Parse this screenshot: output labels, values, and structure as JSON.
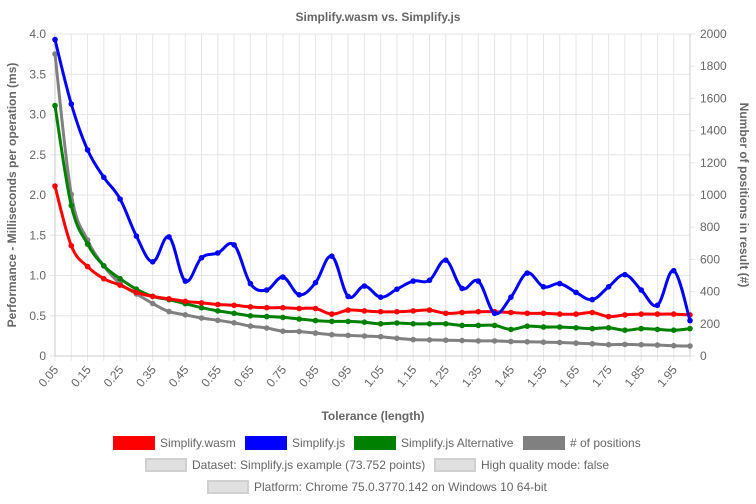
{
  "chart_data": {
    "type": "line",
    "title": "Simplify.wasm vs. Simplify.js",
    "xlabel": "Tolerance (length)",
    "ylabel_left": "Performance - Milliseconds per operation (ms)",
    "ylabel_right": "Number of positions in result (#)",
    "ylim_left": [
      0,
      4.0
    ],
    "ylim_right": [
      0,
      2000
    ],
    "yticks_left": [
      "0",
      "0.5",
      "1.0",
      "1.5",
      "2.0",
      "2.5",
      "3.0",
      "3.5",
      "4.0"
    ],
    "yticks_right": [
      "0",
      "200",
      "400",
      "600",
      "800",
      "1000",
      "1200",
      "1400",
      "1600",
      "1800",
      "2000"
    ],
    "x": [
      0.05,
      0.1,
      0.15,
      0.2,
      0.25,
      0.3,
      0.35,
      0.4,
      0.45,
      0.5,
      0.55,
      0.6,
      0.65,
      0.7,
      0.75,
      0.8,
      0.85,
      0.9,
      0.95,
      1.0,
      1.05,
      1.1,
      1.15,
      1.2,
      1.25,
      1.3,
      1.35,
      1.4,
      1.45,
      1.5,
      1.55,
      1.6,
      1.65,
      1.7,
      1.75,
      1.8,
      1.85,
      1.9,
      1.95,
      2.0
    ],
    "xticks": [
      "0.05",
      "0.15",
      "0.25",
      "0.35",
      "0.45",
      "0.55",
      "0.65",
      "0.75",
      "0.85",
      "0.95",
      "1.05",
      "1.15",
      "1.25",
      "1.35",
      "1.45",
      "1.55",
      "1.65",
      "1.75",
      "1.85",
      "1.95"
    ],
    "grid": true,
    "legend": "bottom",
    "series": [
      {
        "name": "Simplify.wasm",
        "color": "#ff0000",
        "axis": "left",
        "values": [
          2.11,
          1.37,
          1.11,
          0.96,
          0.88,
          0.79,
          0.74,
          0.71,
          0.68,
          0.66,
          0.64,
          0.63,
          0.61,
          0.6,
          0.6,
          0.59,
          0.59,
          0.52,
          0.57,
          0.56,
          0.55,
          0.55,
          0.56,
          0.57,
          0.53,
          0.54,
          0.55,
          0.55,
          0.54,
          0.53,
          0.53,
          0.52,
          0.52,
          0.54,
          0.49,
          0.51,
          0.52,
          0.52,
          0.52,
          0.51
        ]
      },
      {
        "name": "Simplify.js",
        "color": "#0000ff",
        "axis": "left",
        "values": [
          3.93,
          3.13,
          2.56,
          2.22,
          1.95,
          1.49,
          1.17,
          1.48,
          0.93,
          1.22,
          1.28,
          1.38,
          0.9,
          0.82,
          0.98,
          0.76,
          0.91,
          1.24,
          0.74,
          0.87,
          0.73,
          0.83,
          0.93,
          0.94,
          1.19,
          0.84,
          0.93,
          0.53,
          0.73,
          1.03,
          0.86,
          0.9,
          0.79,
          0.7,
          0.86,
          1.01,
          0.82,
          0.63,
          1.06,
          0.44
        ]
      },
      {
        "name": "Simplify.js Alternative",
        "color": "#008000",
        "axis": "left",
        "values": [
          3.11,
          1.87,
          1.39,
          1.12,
          0.96,
          0.83,
          0.74,
          0.7,
          0.65,
          0.6,
          0.56,
          0.53,
          0.5,
          0.49,
          0.48,
          0.46,
          0.44,
          0.43,
          0.43,
          0.42,
          0.4,
          0.41,
          0.4,
          0.4,
          0.4,
          0.38,
          0.38,
          0.38,
          0.33,
          0.37,
          0.36,
          0.36,
          0.35,
          0.34,
          0.35,
          0.32,
          0.34,
          0.33,
          0.32,
          0.34
        ]
      },
      {
        "name": "# of positions",
        "color": "#808080",
        "axis": "right",
        "values": [
          1876,
          1004,
          720,
          560,
          450,
          386,
          326,
          276,
          256,
          236,
          222,
          206,
          186,
          174,
          154,
          152,
          142,
          132,
          128,
          124,
          120,
          110,
          102,
          100,
          98,
          96,
          94,
          94,
          90,
          88,
          86,
          84,
          80,
          76,
          70,
          72,
          70,
          68,
          64,
          62
        ]
      }
    ]
  },
  "legend_extra": [
    "Dataset: Simplify.js example (73.752 points)",
    "High quality mode: false",
    "Platform: Chrome 75.0.3770.142 on Windows 10 64-bit"
  ],
  "legend_extra_color": "#e0e0e0"
}
